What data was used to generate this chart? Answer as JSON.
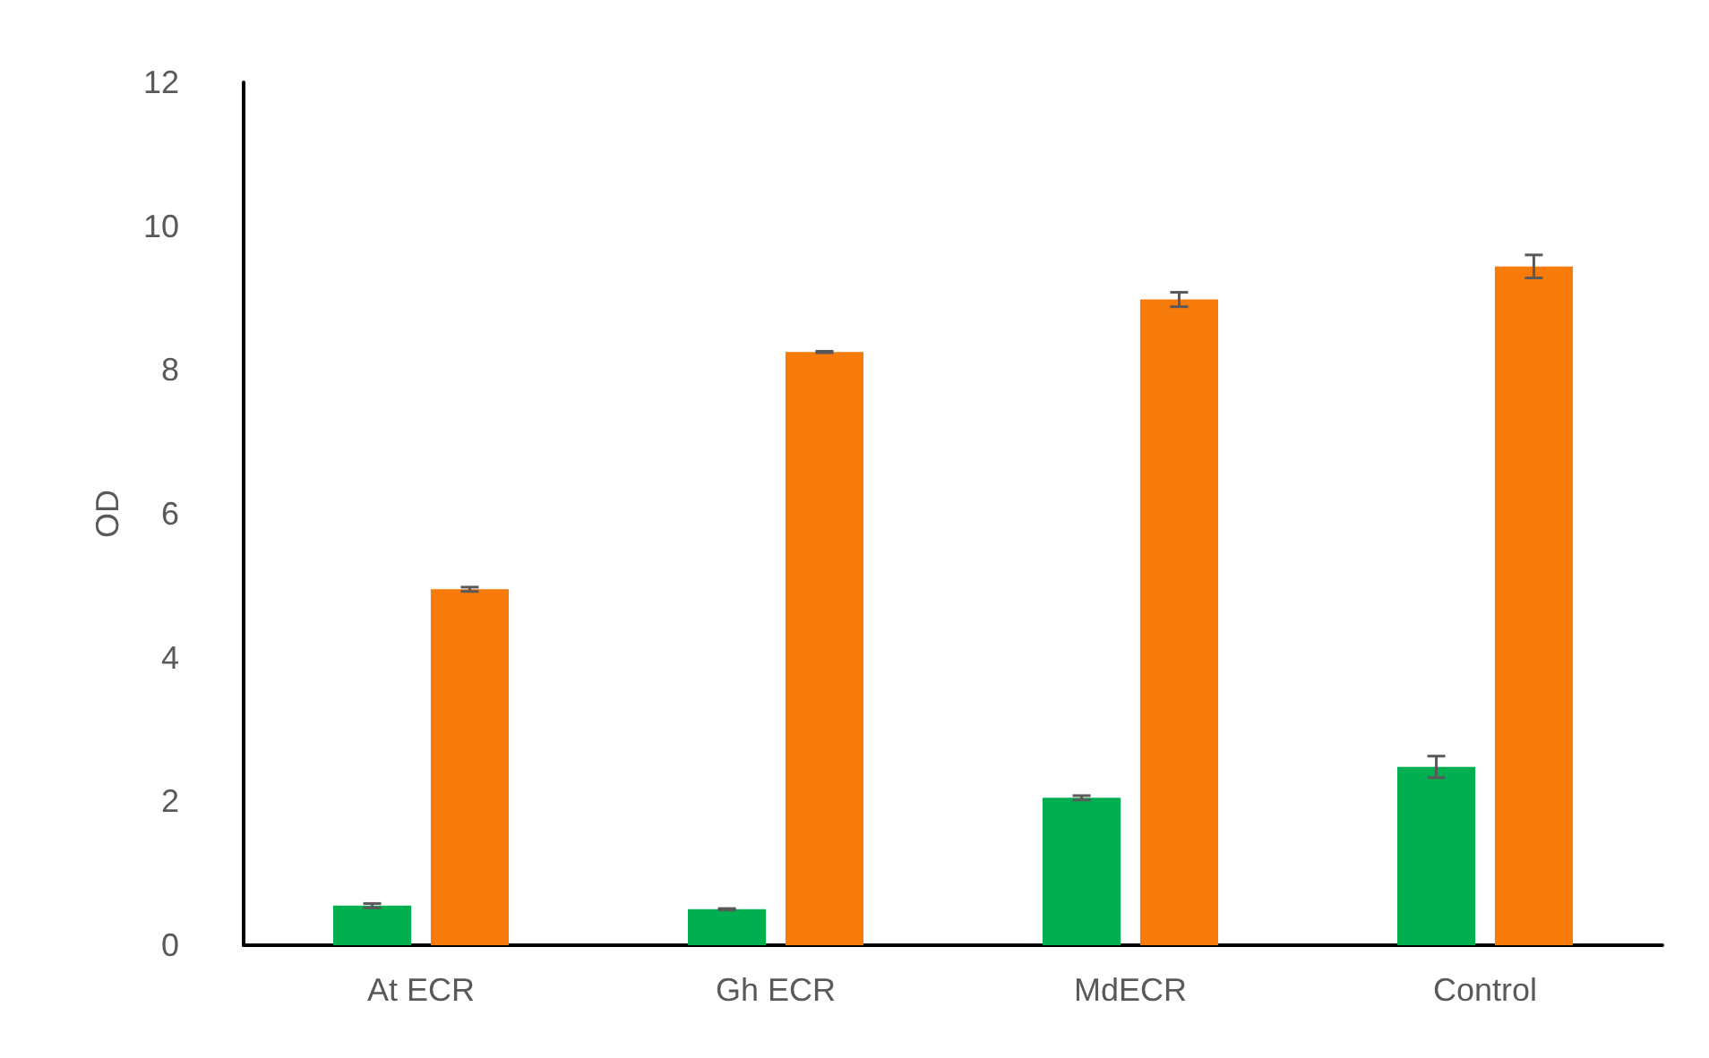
{
  "chart_data": {
    "type": "bar",
    "ylabel": "OD",
    "categories": [
      "At ECR",
      "Gh ECR",
      "MdECR",
      "Control"
    ],
    "series": [
      {
        "color": "#00b050",
        "values": [
          0.55,
          0.5,
          2.05,
          2.48
        ],
        "errors": [
          0.03,
          0.01,
          0.03,
          0.15
        ]
      },
      {
        "color": "#f77b0a",
        "values": [
          4.95,
          8.25,
          8.98,
          9.44
        ],
        "errors": [
          0.03,
          0.01,
          0.1,
          0.16
        ]
      }
    ],
    "ylim": [
      0,
      12
    ],
    "yticks": [
      0,
      2,
      4,
      6,
      8,
      10,
      12
    ],
    "grid": false
  }
}
